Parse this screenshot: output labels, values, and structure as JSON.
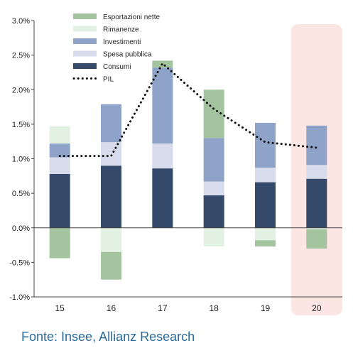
{
  "chart_data": {
    "type": "bar",
    "stacked": true,
    "categories": [
      "15",
      "16",
      "17",
      "18",
      "19",
      "20"
    ],
    "ylim": [
      -1.0,
      3.0
    ],
    "yticks": [
      -1.0,
      -0.5,
      0.0,
      0.5,
      1.0,
      1.5,
      2.0,
      2.5,
      3.0
    ],
    "ytick_labels": [
      "-1.0%",
      "-0.5%",
      "0.0%",
      "0.5%",
      "1.0%",
      "1.5%",
      "2.0%",
      "2.5%",
      "3.0%"
    ],
    "grid": false,
    "legend_position": "top-left",
    "highlight_category": "20",
    "series": [
      {
        "name": "Consumi",
        "color": "#354a6b",
        "values": [
          0.78,
          0.9,
          0.86,
          0.47,
          0.66,
          0.71
        ]
      },
      {
        "name": "Spesa pubblica",
        "color": "#d7dcec",
        "values": [
          0.24,
          0.34,
          0.36,
          0.2,
          0.21,
          0.2
        ]
      },
      {
        "name": "Investimenti",
        "color": "#8fa3c8",
        "values": [
          0.2,
          0.55,
          1.1,
          0.63,
          0.65,
          0.57
        ]
      },
      {
        "name": "Rimanenze",
        "color": "#e2f1e1",
        "values": [
          0.25,
          -0.35,
          0.0,
          -0.27,
          -0.18,
          -0.02
        ]
      },
      {
        "name": "Esportazioni nette",
        "color": "#a4c4a0",
        "values": [
          -0.44,
          -0.4,
          0.1,
          0.7,
          -0.09,
          -0.28
        ]
      }
    ],
    "line": {
      "name": "PIL",
      "color": "#111111",
      "values": [
        1.04,
        1.04,
        2.38,
        1.72,
        1.24,
        1.16
      ]
    }
  },
  "source": "Fonte: Insee, Allianz Research"
}
